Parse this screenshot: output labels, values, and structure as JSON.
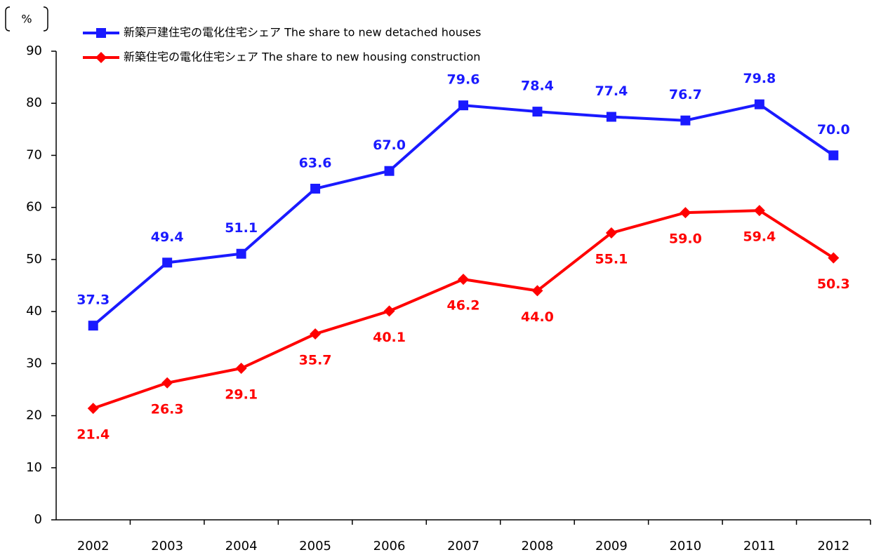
{
  "chart_data": {
    "type": "line",
    "y_label": "%",
    "categories": [
      "2002",
      "2003",
      "2004",
      "2005",
      "2006",
      "2007",
      "2008",
      "2009",
      "2010",
      "2011",
      "2012"
    ],
    "series": [
      {
        "name": "新築戸建住宅の電化住宅シェア The share to new detached houses",
        "color": "#1a1aff",
        "marker": "square",
        "values": [
          37.3,
          49.4,
          51.1,
          63.6,
          67.0,
          79.6,
          78.4,
          77.4,
          76.7,
          79.8,
          70.0
        ],
        "value_labels": [
          "37.3",
          "49.4",
          "51.1",
          "63.6",
          "67.0",
          "79.6",
          "78.4",
          "77.4",
          "76.7",
          "79.8",
          "70.0"
        ]
      },
      {
        "name": "新築住宅の電化住宅シェア The share to new housing construction",
        "color": "#ff0000",
        "marker": "diamond",
        "values": [
          21.4,
          26.3,
          29.1,
          35.7,
          40.1,
          46.2,
          44.0,
          55.1,
          59.0,
          59.4,
          50.3
        ],
        "value_labels": [
          "21.4",
          "26.3",
          "29.1",
          "35.7",
          "40.1",
          "46.2",
          "44.0",
          "55.1",
          "59.0",
          "59.4",
          "50.3"
        ]
      }
    ],
    "ylim": [
      0,
      90
    ],
    "yticks": [
      0,
      10,
      20,
      30,
      40,
      50,
      60,
      70,
      80,
      90
    ],
    "grid": false,
    "legend": "top-left"
  }
}
